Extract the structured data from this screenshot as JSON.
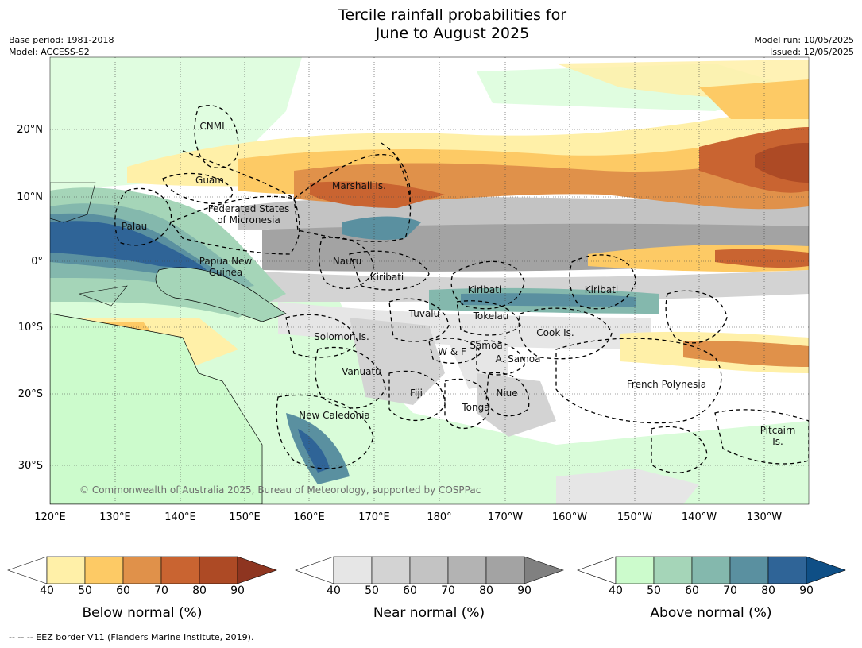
{
  "title_line1": "Tercile rainfall probabilities for",
  "title_line2": "June to August 2025",
  "meta_left": {
    "base_period": "Base period: 1981-2018",
    "model": "Model: ACCESS-S2"
  },
  "meta_right": {
    "model_run": "Model run: 10/05/2025",
    "issued": "Issued: 12/05/2025"
  },
  "lat_labels": [
    "20°N",
    "10°N",
    "0°",
    "10°S",
    "20°S",
    "30°S"
  ],
  "lon_labels": [
    "120°E",
    "130°E",
    "140°E",
    "150°E",
    "160°E",
    "170°E",
    "180°",
    "170°W",
    "160°W",
    "150°W",
    "140°W",
    "130°W"
  ],
  "places": {
    "cnmi": "CNMI",
    "guam": "Guam",
    "marshall": "Marshall Is.",
    "fsm1": "Federated States",
    "fsm2": "of Micronesia",
    "palau": "Palau",
    "png1": "Papua New",
    "png2": "Guinea",
    "nauru": "Nauru",
    "kiribati_w": "Kiribati",
    "kiribati_c": "Kiribati",
    "kiribati_e": "Kiribati",
    "tuvalu": "Tuvalu",
    "tokelau": "Tokelau",
    "cook": "Cook Is.",
    "solomon": "Solomon Is.",
    "samoa": "Samoa",
    "wf": "W & F",
    "asamoa": "A. Samoa",
    "vanuatu": "Vanuatu",
    "fiji": "Fiji",
    "niue": "Niue",
    "tonga": "Tonga",
    "newcal": "New Caledonia",
    "frpoly": "French Polynesia",
    "pitcairn1": "Pitcairn",
    "pitcairn2": "Is."
  },
  "copyright": "© Commonwealth of Australia 2025, Bureau of Meteorology, supported by COSPPac",
  "colorbars": [
    {
      "title": "Below normal (%)",
      "ticks": [
        "40",
        "50",
        "60",
        "70",
        "80",
        "90"
      ],
      "colors": [
        "#fff0a8",
        "#fdca65",
        "#e0914a",
        "#c96431",
        "#ad4a25"
      ],
      "over_color": "#8e3520"
    },
    {
      "title": "Near normal (%)",
      "ticks": [
        "40",
        "50",
        "60",
        "70",
        "80",
        "90"
      ],
      "colors": [
        "#e6e6e6",
        "#d3d3d3",
        "#c3c3c3",
        "#b3b3b3",
        "#a3a3a3"
      ],
      "over_color": "#808080"
    },
    {
      "title": "Above normal (%)",
      "ticks": [
        "40",
        "50",
        "60",
        "70",
        "80",
        "90"
      ],
      "colors": [
        "#ccfbcc",
        "#a5d5b8",
        "#84b8ad",
        "#5a90a0",
        "#2f6497"
      ],
      "over_color": "#0f4f86"
    }
  ],
  "footnote": "--  --  -- EEZ border V11 (Flanders Marine Institute, 2019)."
}
